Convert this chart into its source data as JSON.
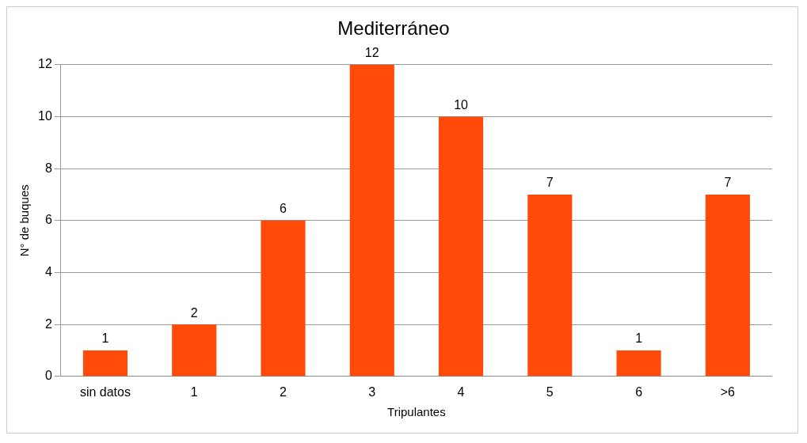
{
  "chart_data": {
    "type": "bar",
    "title": "Mediterráneo",
    "xlabel": "Tripulantes",
    "ylabel": "N° de buques",
    "categories": [
      "sin datos",
      "1",
      "2",
      "3",
      "4",
      "5",
      "6",
      ">6"
    ],
    "values": [
      1,
      2,
      6,
      12,
      10,
      7,
      1,
      7
    ],
    "color": "#ff4a0a",
    "ylim": [
      0,
      12
    ],
    "yticks": [
      0,
      2,
      4,
      6,
      8,
      10,
      12
    ],
    "grid": "y",
    "data_labels": true
  }
}
